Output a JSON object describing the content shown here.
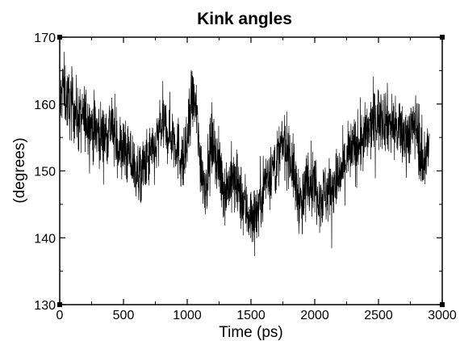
{
  "chart_data": {
    "type": "line",
    "title": "Kink angles",
    "xlabel": "Time (ps)",
    "ylabel": "(degrees)",
    "xlim": [
      0,
      3000
    ],
    "ylim": [
      130,
      170
    ],
    "xticks": [
      0,
      500,
      1000,
      1500,
      2000,
      2500,
      3000
    ],
    "yticks": [
      130,
      140,
      150,
      160,
      170
    ],
    "grid": false,
    "legend": "none",
    "series": [
      {
        "color": "#000000",
        "x": [
          0,
          25,
          50,
          75,
          100,
          150,
          200,
          250,
          300,
          350,
          400,
          450,
          500,
          550,
          600,
          625,
          650,
          700,
          750,
          800,
          850,
          900,
          950,
          975,
          1000,
          1025,
          1050,
          1075,
          1100,
          1125,
          1150,
          1175,
          1200,
          1250,
          1300,
          1350,
          1400,
          1450,
          1500,
          1550,
          1600,
          1650,
          1700,
          1750,
          1800,
          1850,
          1875,
          1900,
          1925,
          1950,
          2000,
          2050,
          2100,
          2150,
          2200,
          2250,
          2300,
          2350,
          2400,
          2450,
          2500,
          2550,
          2600,
          2650,
          2700,
          2750,
          2800,
          2825,
          2850,
          2875,
          2900
        ],
        "y": [
          159,
          163,
          161,
          160,
          160,
          157.5,
          158,
          157,
          156,
          155,
          157,
          154,
          153,
          152,
          150,
          149,
          150,
          152,
          153,
          157,
          156,
          155,
          152,
          151,
          154,
          159,
          161,
          158,
          152,
          149,
          148,
          152,
          155,
          150,
          147,
          149,
          147,
          145,
          143,
          144,
          148,
          150,
          151,
          154,
          153,
          148,
          146,
          144,
          147,
          150,
          148,
          146,
          147,
          148,
          149,
          152,
          153,
          154,
          155,
          157,
          158,
          158,
          157,
          156,
          155,
          156,
          157,
          153,
          151,
          153,
          154
        ]
      }
    ]
  }
}
